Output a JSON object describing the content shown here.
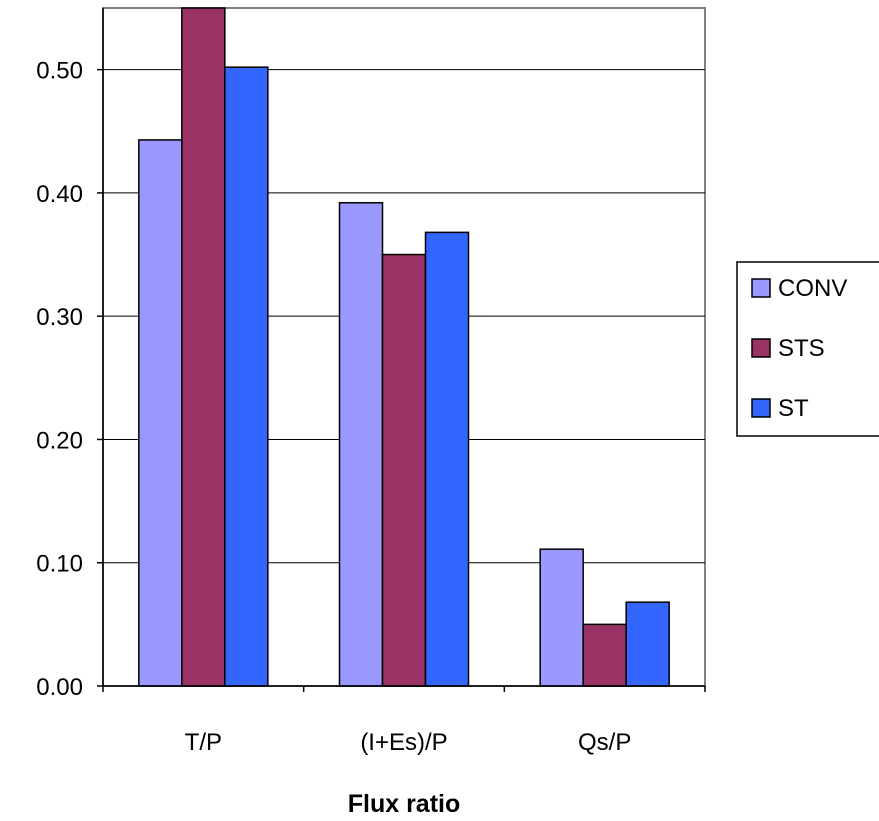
{
  "chart_data": {
    "type": "bar",
    "title": "",
    "xlabel": "Flux ratio",
    "ylabel": "",
    "categories": [
      "T/P",
      "(I+Es)/P",
      "Qs/P"
    ],
    "series": [
      {
        "name": "CONV",
        "color": "#9999FF",
        "values": [
          0.443,
          0.392,
          0.111
        ]
      },
      {
        "name": "STS",
        "color": "#993366",
        "values": [
          0.55,
          0.35,
          0.05
        ]
      },
      {
        "name": "ST",
        "color": "#3366FF",
        "values": [
          0.502,
          0.368,
          0.068
        ]
      }
    ],
    "ylim": [
      0,
      0.55
    ],
    "yticks": [
      "0.00",
      "0.10",
      "0.20",
      "0.30",
      "0.40",
      "0.50"
    ],
    "grid": true,
    "legend_position": "right"
  }
}
